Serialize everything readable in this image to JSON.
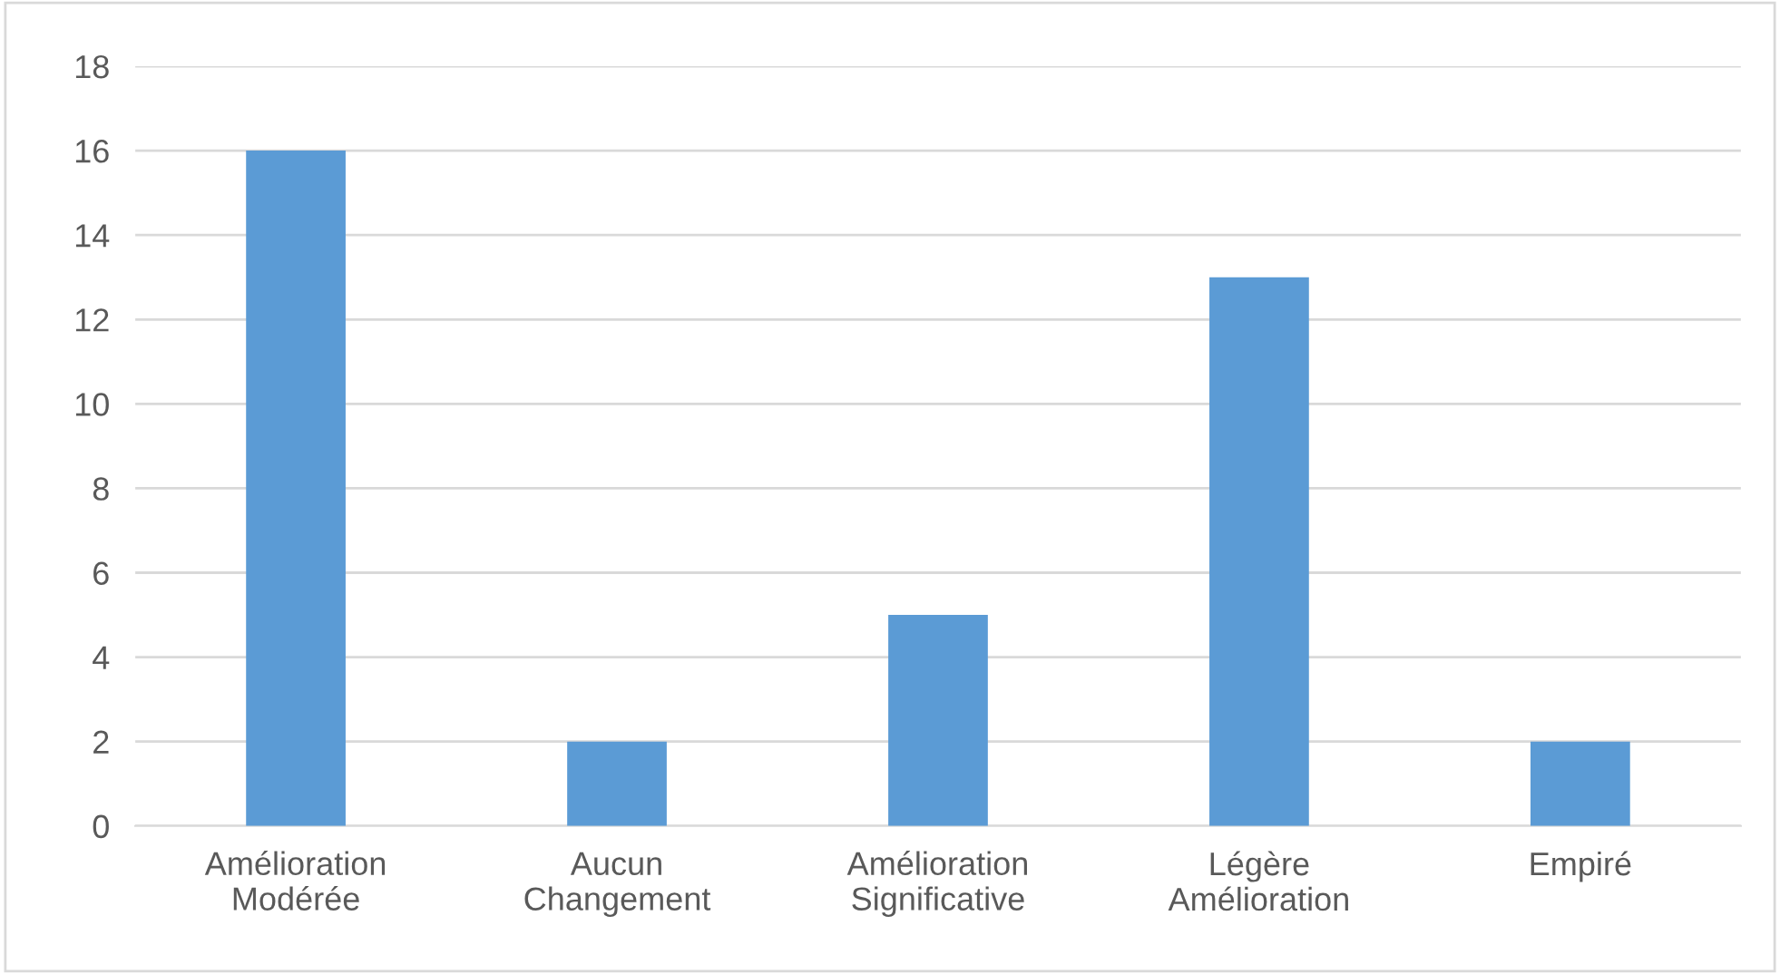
{
  "chart_data": {
    "type": "bar",
    "categories": [
      "Amélioration\nModérée",
      "Aucun\nChangement",
      "Amélioration\nSignificative",
      "Légère\nAmélioration",
      "Empiré"
    ],
    "values": [
      16,
      2,
      5,
      13,
      2
    ],
    "color": "#5b9bd5",
    "ylim": [
      0,
      18
    ],
    "yticks": [
      0,
      2,
      4,
      6,
      8,
      10,
      12,
      14,
      16,
      18
    ],
    "grid": "y"
  }
}
